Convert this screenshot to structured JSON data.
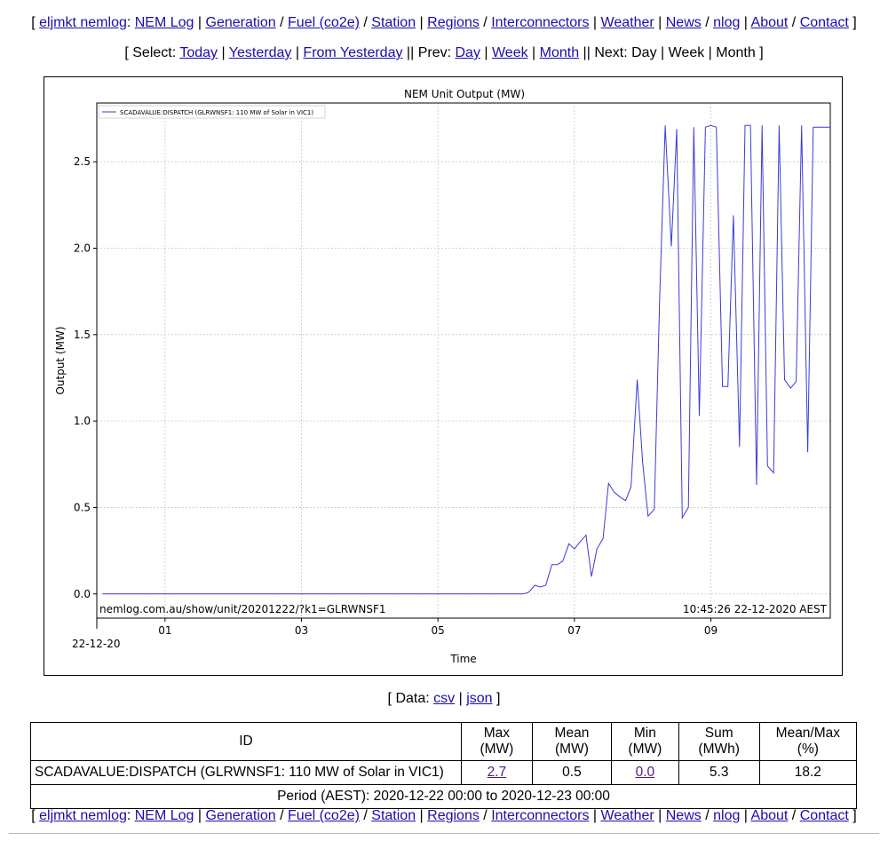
{
  "nav": {
    "open": "[",
    "close": "]",
    "items": [
      {
        "label": "eljmkt nemlog",
        "sep": ":"
      },
      {
        "label": "NEM Log",
        "sep": "|"
      },
      {
        "label": "Generation",
        "sep": "/"
      },
      {
        "label": "Fuel (co2e)",
        "sep": "/"
      },
      {
        "label": "Station",
        "sep": "|"
      },
      {
        "label": "Regions",
        "sep": "/"
      },
      {
        "label": "Interconnectors",
        "sep": "|"
      },
      {
        "label": "Weather",
        "sep": "|"
      },
      {
        "label": "News",
        "sep": "/"
      },
      {
        "label": "nlog",
        "sep": "|"
      },
      {
        "label": "About",
        "sep": "/"
      },
      {
        "label": "Contact",
        "sep": ""
      }
    ]
  },
  "select_nav": {
    "select_prefix": "[ Select:",
    "today": "Today",
    "yesterday": "Yesterday",
    "from_yesterday": "From Yesterday",
    "prev_prefix": "Prev:",
    "prev_day": "Day",
    "prev_week": "Week",
    "prev_month": "Month",
    "next_prefix": "Next:",
    "next_day": "Day",
    "next_week": "Week",
    "next_month": "Month",
    "close": "]"
  },
  "chart_data": {
    "type": "line",
    "title": "NEM Unit Output (MW)",
    "xlabel": "Time",
    "ylabel": "Output (MW)",
    "x_tick_labels": [
      "01",
      "03",
      "05",
      "07",
      "09"
    ],
    "x_ticks_hours": [
      1,
      3,
      5,
      7,
      9
    ],
    "x_date_label": "22-12-20",
    "xlim_hours": [
      0,
      10.75
    ],
    "y_ticks": [
      0.0,
      0.5,
      1.0,
      1.5,
      2.0,
      2.5
    ],
    "y_tick_labels": [
      "0.0",
      "0.5",
      "1.0",
      "1.5",
      "2.0",
      "2.5"
    ],
    "ylim": [
      -0.14,
      2.84
    ],
    "grid": true,
    "legend_position": "top-left",
    "series": [
      {
        "name": "SCADAVALUE:DISPATCH (GLRWNSF1: 110 MW of Solar in VIC1)",
        "color": "#3b3bd6",
        "x_hours": [
          0.083,
          6.25,
          6.33,
          6.42,
          6.5,
          6.58,
          6.67,
          6.75,
          6.83,
          6.92,
          7.0,
          7.08,
          7.17,
          7.25,
          7.33,
          7.42,
          7.5,
          7.58,
          7.67,
          7.75,
          7.83,
          7.92,
          8.0,
          8.08,
          8.17,
          8.25,
          8.33,
          8.42,
          8.5,
          8.58,
          8.67,
          8.75,
          8.83,
          8.92,
          9.0,
          9.08,
          9.17,
          9.25,
          9.33,
          9.42,
          9.5,
          9.58,
          9.67,
          9.75,
          9.83,
          9.92,
          10.0,
          10.08,
          10.17,
          10.25,
          10.33,
          10.42,
          10.5,
          10.58,
          10.67,
          10.75
        ],
        "y": [
          0.0,
          0.0,
          0.01,
          0.05,
          0.04,
          0.05,
          0.17,
          0.17,
          0.19,
          0.29,
          0.26,
          0.3,
          0.34,
          0.1,
          0.26,
          0.32,
          0.64,
          0.59,
          0.56,
          0.54,
          0.62,
          1.24,
          0.76,
          0.45,
          0.49,
          1.72,
          2.71,
          2.01,
          2.69,
          0.44,
          0.5,
          2.7,
          1.03,
          2.7,
          2.71,
          2.7,
          1.2,
          1.2,
          2.19,
          0.85,
          2.71,
          2.71,
          0.63,
          2.71,
          0.74,
          0.7,
          2.71,
          1.24,
          1.19,
          1.23,
          2.71,
          0.82,
          2.7,
          2.7,
          2.7,
          2.7
        ]
      }
    ],
    "footer_left": "nemlog.com.au/show/unit/20201222/?k1=GLRWNSF1",
    "footer_right": "10:45:26 22-12-2020 AEST"
  },
  "data_links": {
    "prefix": "[ Data:",
    "csv": "csv",
    "json": "json",
    "suffix": "]"
  },
  "stats_table": {
    "headers": [
      "ID",
      "Max (MW)",
      "Mean (MW)",
      "Min (MW)",
      "Sum (MWh)",
      "Mean/Max (%)"
    ],
    "row": {
      "id": "SCADAVALUE:DISPATCH (GLRWNSF1: 110 MW of Solar in VIC1)",
      "max": "2.7",
      "mean": "0.5",
      "min": "0.0",
      "sum": "5.3",
      "mean_max_pct": "18.2"
    },
    "period": "Period (AEST): 2020-12-22 00:00 to 2020-12-23 00:00"
  }
}
